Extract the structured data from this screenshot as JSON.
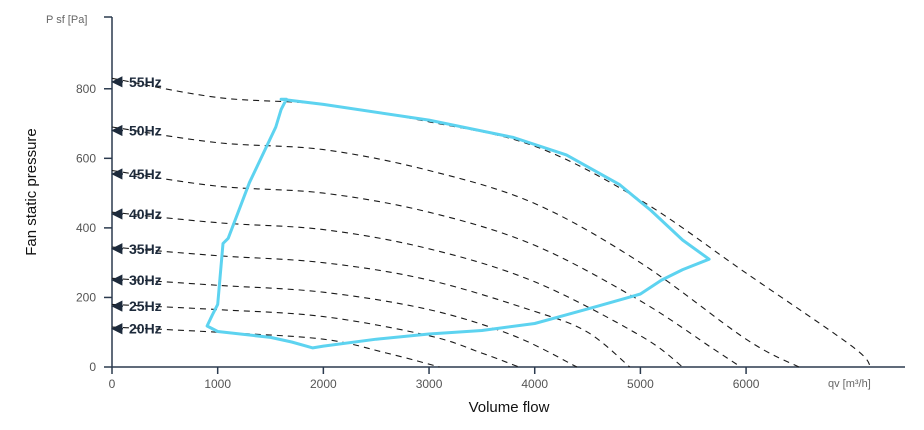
{
  "chart_data": {
    "type": "line",
    "xlabel": "Volume flow",
    "ylabel": "Fan static pressure",
    "x_unit_label": "qv [m³/h]",
    "y_unit_label": "P sf [Pa]",
    "xlim": [
      0,
      7500
    ],
    "ylim": [
      0,
      1000
    ],
    "x_ticks": [
      0,
      1000,
      2000,
      3000,
      4000,
      5000,
      6000
    ],
    "y_ticks": [
      0,
      200,
      400,
      600,
      800
    ],
    "grid": false,
    "colors": {
      "envelope": "#5dd3f0",
      "curves": "#1a1a1a",
      "axis": "#2b3a4e",
      "labels": "#1d2a3b"
    },
    "series": [
      {
        "name": "55Hz",
        "label_y": 820,
        "points": [
          [
            0,
            830
          ],
          [
            1000,
            775
          ],
          [
            2000,
            755
          ],
          [
            3000,
            705
          ],
          [
            4000,
            635
          ],
          [
            5000,
            480
          ],
          [
            6000,
            270
          ],
          [
            7000,
            60
          ],
          [
            7180,
            0
          ]
        ]
      },
      {
        "name": "50Hz",
        "label_y": 680,
        "points": [
          [
            0,
            690
          ],
          [
            1000,
            645
          ],
          [
            2000,
            625
          ],
          [
            3000,
            565
          ],
          [
            4000,
            470
          ],
          [
            5000,
            300
          ],
          [
            6000,
            80
          ],
          [
            6500,
            0
          ]
        ]
      },
      {
        "name": "45Hz",
        "label_y": 555,
        "points": [
          [
            0,
            565
          ],
          [
            1000,
            520
          ],
          [
            2000,
            500
          ],
          [
            3000,
            445
          ],
          [
            4000,
            350
          ],
          [
            5000,
            190
          ],
          [
            5700,
            50
          ],
          [
            5950,
            0
          ]
        ]
      },
      {
        "name": "40Hz",
        "label_y": 440,
        "points": [
          [
            0,
            445
          ],
          [
            1000,
            415
          ],
          [
            2000,
            395
          ],
          [
            3000,
            340
          ],
          [
            4000,
            245
          ],
          [
            5000,
            90
          ],
          [
            5400,
            0
          ]
        ]
      },
      {
        "name": "35Hz",
        "label_y": 340,
        "points": [
          [
            0,
            345
          ],
          [
            1000,
            320
          ],
          [
            2000,
            300
          ],
          [
            3000,
            250
          ],
          [
            4000,
            160
          ],
          [
            4500,
            100
          ],
          [
            4900,
            0
          ]
        ]
      },
      {
        "name": "30Hz",
        "label_y": 250,
        "points": [
          [
            0,
            255
          ],
          [
            1000,
            235
          ],
          [
            2000,
            215
          ],
          [
            3000,
            165
          ],
          [
            3800,
            90
          ],
          [
            4400,
            0
          ]
        ]
      },
      {
        "name": "25Hz",
        "label_y": 175,
        "points": [
          [
            0,
            180
          ],
          [
            1000,
            165
          ],
          [
            2000,
            145
          ],
          [
            3000,
            90
          ],
          [
            3500,
            40
          ],
          [
            3850,
            0
          ]
        ]
      },
      {
        "name": "20Hz",
        "label_y": 110,
        "points": [
          [
            0,
            115
          ],
          [
            1000,
            100
          ],
          [
            2000,
            80
          ],
          [
            2600,
            40
          ],
          [
            3100,
            0
          ]
        ]
      }
    ],
    "envelope": [
      [
        1600,
        770
      ],
      [
        2000,
        755
      ],
      [
        3000,
        710
      ],
      [
        3800,
        660
      ],
      [
        4300,
        610
      ],
      [
        4800,
        525
      ],
      [
        5100,
        450
      ],
      [
        5400,
        365
      ],
      [
        5650,
        310
      ],
      [
        5400,
        280
      ],
      [
        5200,
        250
      ],
      [
        5000,
        210
      ],
      [
        4600,
        175
      ],
      [
        4300,
        150
      ],
      [
        4000,
        125
      ],
      [
        3500,
        105
      ],
      [
        3000,
        95
      ],
      [
        2500,
        80
      ],
      [
        2000,
        60
      ],
      [
        1900,
        55
      ],
      [
        1700,
        72
      ],
      [
        1500,
        85
      ],
      [
        1000,
        102
      ],
      [
        900,
        118
      ],
      [
        950,
        150
      ],
      [
        1000,
        180
      ],
      [
        1050,
        355
      ],
      [
        1100,
        370
      ],
      [
        1300,
        530
      ],
      [
        1550,
        690
      ],
      [
        1600,
        740
      ],
      [
        1650,
        770
      ]
    ]
  }
}
